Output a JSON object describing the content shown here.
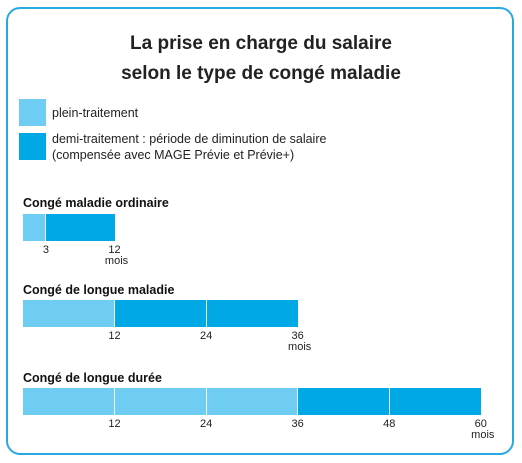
{
  "title_line1": "La prise en charge du salaire",
  "title_line2": "selon le type de congé maladie",
  "legend": [
    {
      "label": "plein-traitement",
      "color": "#6fcdf4"
    },
    {
      "label_line1": "demi-traitement : période de diminution de salaire",
      "label_line2": "(compensée avec MAGE Prévie et Prévie+)",
      "color": "#00a9e6"
    }
  ],
  "chart_data": {
    "type": "bar",
    "orientation": "horizontal-stacked",
    "unit": "mois",
    "series_colors": {
      "plein": "#6fcdf4",
      "demi": "#00a9e6"
    },
    "rows": [
      {
        "name": "Congé maladie ordinaire",
        "plein": 3,
        "demi": 9,
        "total": 12,
        "ticks": [
          "3",
          "12"
        ]
      },
      {
        "name": "Congé de longue maladie",
        "plein": 12,
        "demi": 24,
        "total": 36,
        "ticks": [
          "12",
          "24",
          "36"
        ]
      },
      {
        "name": "Congé de longue durée",
        "plein": 36,
        "demi": 24,
        "total": 60,
        "ticks": [
          "12",
          "24",
          "36",
          "48",
          "60"
        ]
      }
    ]
  }
}
